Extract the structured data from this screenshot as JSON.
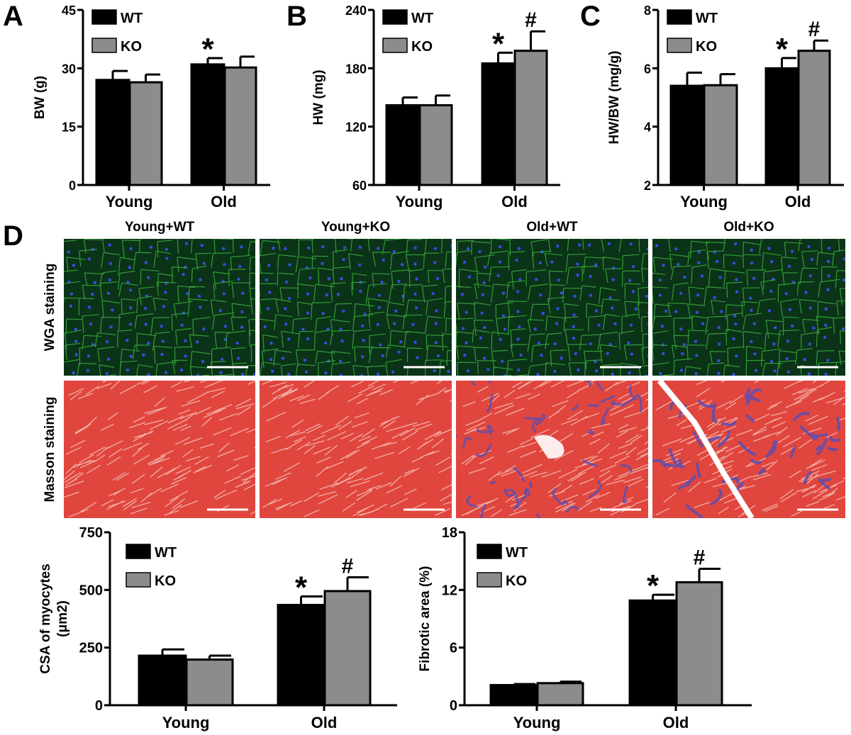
{
  "figure": {
    "panel_letters": [
      "A",
      "B",
      "C",
      "D"
    ],
    "columns": [
      "Young+WT",
      "Young+KO",
      "Old+WT",
      "Old+KO"
    ],
    "rows": [
      "WGA staining",
      "Masson staining"
    ],
    "colors": {
      "WT": "#000000",
      "KO": "#8c8c8c",
      "wga_bg": "#0b3318",
      "wga_membrane": "#3fbf3f",
      "wga_nuclei": "#3050e0",
      "masson_red": "#e0463e",
      "masson_blue": "#5a4fb0"
    }
  },
  "chart_data": [
    {
      "id": "A",
      "type": "bar",
      "ylabel": "BW (g)",
      "ylim": [
        0,
        45
      ],
      "yticks": [
        0,
        15,
        30,
        45
      ],
      "categories": [
        "Young",
        "Old"
      ],
      "legend": [
        "WT",
        "KO"
      ],
      "legend_position": "top-left",
      "series": [
        {
          "name": "WT",
          "values": [
            27.0,
            31.0
          ],
          "errors": [
            2.3,
            1.6
          ]
        },
        {
          "name": "KO",
          "values": [
            26.4,
            30.2
          ],
          "errors": [
            2.0,
            2.8
          ]
        }
      ],
      "annotations": [
        {
          "category": "Old",
          "series": "WT",
          "text": "*"
        }
      ]
    },
    {
      "id": "B",
      "type": "bar",
      "ylabel": "HW (mg)",
      "ylim": [
        60,
        240
      ],
      "yticks": [
        60,
        120,
        180,
        240
      ],
      "categories": [
        "Young",
        "Old"
      ],
      "legend": [
        "WT",
        "KO"
      ],
      "legend_position": "top-left",
      "series": [
        {
          "name": "WT",
          "values": [
            142,
            185
          ],
          "errors": [
            8,
            11
          ]
        },
        {
          "name": "KO",
          "values": [
            142,
            198
          ],
          "errors": [
            10,
            20
          ]
        }
      ],
      "annotations": [
        {
          "category": "Old",
          "series": "WT",
          "text": "*"
        },
        {
          "category": "Old",
          "series": "KO",
          "text": "#"
        }
      ]
    },
    {
      "id": "C",
      "type": "bar",
      "ylabel": "HW/BW (mg/g)",
      "ylim": [
        2,
        8
      ],
      "yticks": [
        2,
        4,
        6,
        8
      ],
      "categories": [
        "Young",
        "Old"
      ],
      "legend": [
        "WT",
        "KO"
      ],
      "legend_position": "top-left",
      "series": [
        {
          "name": "WT",
          "values": [
            5.4,
            6.0
          ],
          "errors": [
            0.45,
            0.35
          ]
        },
        {
          "name": "KO",
          "values": [
            5.42,
            6.6
          ],
          "errors": [
            0.38,
            0.35
          ]
        }
      ],
      "annotations": [
        {
          "category": "Old",
          "series": "WT",
          "text": "*"
        },
        {
          "category": "Old",
          "series": "KO",
          "text": "#"
        }
      ]
    },
    {
      "id": "CSA",
      "type": "bar",
      "ylabel": "CSA of myocytes (μm2)",
      "ylabel_lines": [
        "CSA of myocytes",
        "(μm2)"
      ],
      "ylim": [
        0,
        750
      ],
      "yticks": [
        0,
        250,
        500,
        750
      ],
      "categories": [
        "Young",
        "Old"
      ],
      "legend": [
        "WT",
        "KO"
      ],
      "legend_position": "top-left",
      "series": [
        {
          "name": "WT",
          "values": [
            215,
            435
          ],
          "errors": [
            27,
            37
          ]
        },
        {
          "name": "KO",
          "values": [
            198,
            495
          ],
          "errors": [
            17,
            60
          ]
        }
      ],
      "annotations": [
        {
          "category": "Old",
          "series": "WT",
          "text": "*"
        },
        {
          "category": "Old",
          "series": "KO",
          "text": "#"
        }
      ]
    },
    {
      "id": "Fibrotic",
      "type": "bar",
      "ylabel": "Fibrotic area (%)",
      "ylim": [
        0,
        18
      ],
      "yticks": [
        0,
        6,
        12,
        18
      ],
      "categories": [
        "Young",
        "Old"
      ],
      "legend": [
        "WT",
        "KO"
      ],
      "legend_position": "top-left",
      "series": [
        {
          "name": "WT",
          "values": [
            2.1,
            10.9
          ],
          "errors": [
            0.1,
            0.6
          ]
        },
        {
          "name": "KO",
          "values": [
            2.3,
            12.8
          ],
          "errors": [
            0.15,
            1.4
          ]
        }
      ],
      "annotations": [
        {
          "category": "Old",
          "series": "WT",
          "text": "*"
        },
        {
          "category": "Old",
          "series": "KO",
          "text": "#"
        }
      ]
    }
  ]
}
